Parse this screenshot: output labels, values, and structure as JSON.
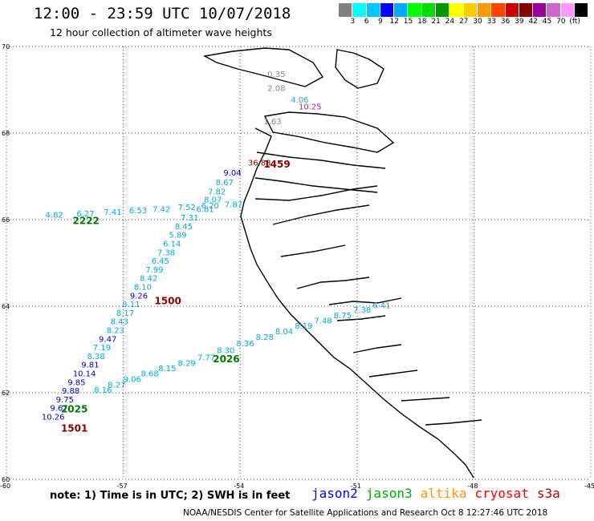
{
  "header": {
    "title": "12:00 - 23:59 UTC 10/07/2018",
    "subtitle": "12 hour collection of altimeter wave heights"
  },
  "colorbar": {
    "colors": [
      "#808080",
      "#00ffff",
      "#00c8ff",
      "#0000ff",
      "#00aaff",
      "#00ff00",
      "#00dd00",
      "#009900",
      "#ffff00",
      "#ffcc00",
      "#ff9900",
      "#ff4400",
      "#cc0000",
      "#880000",
      "#990099",
      "#cc66cc",
      "#ff99ff",
      "#000000"
    ],
    "labels": [
      "3",
      "6",
      "9",
      "12",
      "15",
      "18",
      "21",
      "24",
      "27",
      "30",
      "33",
      "36",
      "39",
      "42",
      "45",
      "70",
      "(ft)"
    ]
  },
  "axes": {
    "lat_labels": [
      "70",
      "68",
      "66",
      "64",
      "62",
      "60"
    ],
    "lon_labels": [
      "-60",
      "-57",
      "-54",
      "-51",
      "-48",
      "-45"
    ],
    "lat_range": [
      60,
      70
    ],
    "lon_range": [
      -60,
      -45
    ]
  },
  "footer": {
    "note": "note: 1) Time is in UTC; 2) SWH is in feet",
    "satellites": [
      {
        "name": "jason2",
        "color": "#0000ff"
      },
      {
        "name": "jason3",
        "color": "#00aa00"
      },
      {
        "name": "altika",
        "color": "#ff9900"
      },
      {
        "name": "cryosat",
        "color": "#ff0000"
      },
      {
        "name": "s3a",
        "color": "#bb0000"
      }
    ],
    "credit": "NOAA/NESDIS Center for Satellite Applications and Research   Oct  8 12:27:46 UTC 2018"
  },
  "tracks": {
    "north": [
      {
        "lon": -53.3,
        "lat": 69.3,
        "swh": "0.35",
        "color": "#888888"
      },
      {
        "lon": -53.3,
        "lat": 68.97,
        "swh": "2.08",
        "color": "#888888"
      },
      {
        "lon": -52.7,
        "lat": 68.7,
        "swh": "4.06",
        "color": "#33aacc"
      },
      {
        "lon": -52.5,
        "lat": 68.55,
        "swh": "10.25",
        "color": "#aa22aa"
      },
      {
        "lon": -53.4,
        "lat": 68.2,
        "swh": "1.63",
        "color": "#888888"
      },
      {
        "lon": -53.8,
        "lat": 67.25,
        "swh": "36.88",
        "color": "#880000"
      }
    ],
    "west_track": [
      {
        "lon": -54.2,
        "lat": 67.02,
        "swh": "9.04",
        "color": "#0000cc"
      },
      {
        "lon": -54.4,
        "lat": 66.8,
        "swh": "8.67",
        "color": "#00aadd"
      },
      {
        "lon": -54.6,
        "lat": 66.58,
        "swh": "7.82",
        "color": "#00aadd"
      },
      {
        "lon": -54.7,
        "lat": 66.4,
        "swh": "8.07",
        "color": "#00aadd"
      },
      {
        "lon": -54.9,
        "lat": 66.18,
        "swh": "6.81",
        "color": "#00aadd"
      },
      {
        "lon": -55.3,
        "lat": 65.98,
        "swh": "7.31",
        "color": "#00aadd"
      },
      {
        "lon": -55.45,
        "lat": 65.78,
        "swh": "8.45",
        "color": "#00aadd"
      },
      {
        "lon": -55.6,
        "lat": 65.58,
        "swh": "5.89",
        "color": "#00aadd"
      },
      {
        "lon": -55.75,
        "lat": 65.38,
        "swh": "6.14",
        "color": "#00aadd"
      },
      {
        "lon": -55.9,
        "lat": 65.18,
        "swh": "7.38",
        "color": "#00aadd"
      },
      {
        "lon": -56.05,
        "lat": 64.98,
        "swh": "6.45",
        "color": "#00aadd"
      },
      {
        "lon": -56.2,
        "lat": 64.78,
        "swh": "7.99",
        "color": "#00aadd"
      },
      {
        "lon": -56.35,
        "lat": 64.58,
        "swh": "8.42",
        "color": "#00aadd"
      },
      {
        "lon": -56.5,
        "lat": 64.38,
        "swh": "8.10",
        "color": "#00aadd"
      },
      {
        "lon": -56.6,
        "lat": 64.18,
        "swh": "9.26",
        "color": "#0000cc"
      },
      {
        "lon": -56.8,
        "lat": 63.98,
        "swh": "8.11",
        "color": "#00aadd"
      },
      {
        "lon": -56.95,
        "lat": 63.78,
        "swh": "8.17",
        "color": "#00aadd"
      },
      {
        "lon": -57.1,
        "lat": 63.58,
        "swh": "8.43",
        "color": "#00aadd"
      },
      {
        "lon": -57.2,
        "lat": 63.38,
        "swh": "8.23",
        "color": "#00aadd"
      },
      {
        "lon": -57.4,
        "lat": 63.18,
        "swh": "9.47",
        "color": "#0000cc"
      },
      {
        "lon": -57.55,
        "lat": 62.98,
        "swh": "7.19",
        "color": "#00aadd"
      },
      {
        "lon": -57.7,
        "lat": 62.78,
        "swh": "8.38",
        "color": "#00aadd"
      },
      {
        "lon": -57.85,
        "lat": 62.58,
        "swh": "9.81",
        "color": "#0000cc"
      },
      {
        "lon": -58.0,
        "lat": 62.38,
        "swh": "10.14",
        "color": "#0000cc"
      },
      {
        "lon": -58.2,
        "lat": 62.18,
        "swh": "9.85",
        "color": "#0000cc"
      },
      {
        "lon": -58.35,
        "lat": 61.98,
        "swh": "9.88",
        "color": "#0000cc"
      },
      {
        "lon": -58.5,
        "lat": 61.78,
        "swh": "9.75",
        "color": "#0000cc"
      },
      {
        "lon": -58.65,
        "lat": 61.58,
        "swh": "9.67",
        "color": "#0000cc"
      },
      {
        "lon": -58.8,
        "lat": 61.38,
        "swh": "10.26",
        "color": "#0000cc"
      }
    ],
    "east_west_track": [
      {
        "lon": -59.0,
        "lat": 66.05,
        "swh": "4.82",
        "color": "#00aadd"
      },
      {
        "lon": -58.2,
        "lat": 66.07,
        "swh": "6.27",
        "color": "#00aadd"
      },
      {
        "lon": -57.5,
        "lat": 66.11,
        "swh": "7.41",
        "color": "#00aadd"
      },
      {
        "lon": -56.85,
        "lat": 66.15,
        "swh": "6.53",
        "color": "#00aadd"
      },
      {
        "lon": -56.25,
        "lat": 66.18,
        "swh": "7.42",
        "color": "#00aadd"
      },
      {
        "lon": -55.6,
        "lat": 66.22,
        "swh": "7.52",
        "color": "#00aadd"
      },
      {
        "lon": -55.0,
        "lat": 66.26,
        "swh": "6.20",
        "color": "#00aadd"
      },
      {
        "lon": -54.4,
        "lat": 66.29,
        "swh": "7.87",
        "color": "#00aadd"
      }
    ],
    "south_track": [
      {
        "lon": -57.75,
        "lat": 62.0,
        "swh": "8.16",
        "color": "#00aadd"
      },
      {
        "lon": -57.4,
        "lat": 62.12,
        "swh": "8.27",
        "color": "#00aadd"
      },
      {
        "lon": -57.0,
        "lat": 62.25,
        "swh": "9.06",
        "color": "#00aadd"
      },
      {
        "lon": -56.55,
        "lat": 62.38,
        "swh": "8.68",
        "color": "#00aadd"
      },
      {
        "lon": -56.1,
        "lat": 62.5,
        "swh": "8.15",
        "color": "#00aadd"
      },
      {
        "lon": -55.6,
        "lat": 62.62,
        "swh": "8.29",
        "color": "#00aadd"
      },
      {
        "lon": -55.1,
        "lat": 62.75,
        "swh": "7.77",
        "color": "#00aadd"
      },
      {
        "lon": -54.6,
        "lat": 62.92,
        "swh": "8.30",
        "color": "#00aadd"
      },
      {
        "lon": -54.1,
        "lat": 63.07,
        "swh": "8.36",
        "color": "#00aadd"
      },
      {
        "lon": -53.6,
        "lat": 63.22,
        "swh": "8.28",
        "color": "#00aadd"
      },
      {
        "lon": -53.1,
        "lat": 63.35,
        "swh": "8.04",
        "color": "#00aadd"
      },
      {
        "lon": -52.6,
        "lat": 63.48,
        "swh": "8.19",
        "color": "#00aadd"
      },
      {
        "lon": -52.1,
        "lat": 63.6,
        "swh": "7.48",
        "color": "#00aadd"
      },
      {
        "lon": -51.6,
        "lat": 63.72,
        "swh": "8.75",
        "color": "#00aadd"
      },
      {
        "lon": -51.1,
        "lat": 63.85,
        "swh": "7.38",
        "color": "#00aadd"
      },
      {
        "lon": -50.6,
        "lat": 63.95,
        "swh": "6.41",
        "color": "#00aadd"
      }
    ],
    "times": [
      {
        "lon": -53.4,
        "lat": 67.2,
        "text": "1459",
        "color": "#880000"
      },
      {
        "lon": -58.3,
        "lat": 65.9,
        "text": "2222",
        "color": "#007700"
      },
      {
        "lon": -56.2,
        "lat": 64.05,
        "text": "1500",
        "color": "#880000"
      },
      {
        "lon": -54.7,
        "lat": 62.7,
        "text": "2026",
        "color": "#007700"
      },
      {
        "lon": -58.6,
        "lat": 61.55,
        "text": "2025",
        "color": "#007700"
      },
      {
        "lon": -58.6,
        "lat": 61.1,
        "text": "1501",
        "color": "#880000"
      }
    ]
  }
}
